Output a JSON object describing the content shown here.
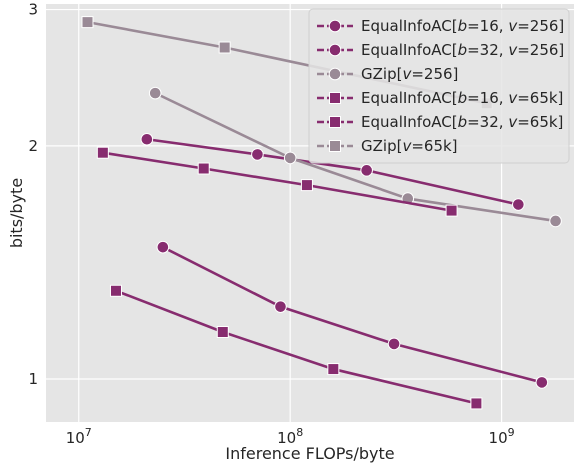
{
  "chart_data": {
    "type": "line",
    "xlabel": "Inference FLOPs/byte",
    "ylabel": "bits/byte",
    "x_scale": "log",
    "y_scale": "log",
    "xlim": [
      7000000,
      2200000000
    ],
    "ylim": [
      0.88,
      3.05
    ],
    "grid": true,
    "legend_position": "top-right",
    "background_color": "#e5e5e5",
    "x_ticks": [
      {
        "value": 10000000,
        "base": "10",
        "exp": "7"
      },
      {
        "value": 100000000,
        "base": "10",
        "exp": "8"
      },
      {
        "value": 1000000000,
        "base": "10",
        "exp": "9"
      }
    ],
    "y_ticks": [
      {
        "value": 1,
        "label": "1"
      },
      {
        "value": 2,
        "label": "2"
      },
      {
        "value": 3,
        "label": "3"
      }
    ],
    "series": [
      {
        "name": "EqualInfoAC[b=16, v=256]",
        "label_parts": [
          "EqualInfoAC[",
          "b",
          "=16, ",
          "v",
          "=256]"
        ],
        "color": "#872c6f",
        "marker": "circle",
        "points": [
          [
            25000000,
            1.48
          ],
          [
            90000000,
            1.24
          ],
          [
            310000000,
            1.11
          ],
          [
            1550000000,
            0.99
          ]
        ]
      },
      {
        "name": "EqualInfoAC[b=32, v=256]",
        "label_parts": [
          "EqualInfoAC[",
          "b",
          "=32, ",
          "v",
          "=256]"
        ],
        "color": "#872c6f",
        "marker": "circle",
        "points": [
          [
            21000000,
            2.04
          ],
          [
            70000000,
            1.95
          ],
          [
            230000000,
            1.86
          ],
          [
            1200000000,
            1.68
          ]
        ]
      },
      {
        "name": "GZip[v=256]",
        "label_parts": [
          "GZip[",
          "v",
          "=256]"
        ],
        "color": "#9a8a96",
        "marker": "circle",
        "points": [
          [
            23000000,
            2.34
          ],
          [
            100000000,
            1.93
          ],
          [
            360000000,
            1.71
          ],
          [
            1800000000,
            1.6
          ]
        ]
      },
      {
        "name": "EqualInfoAC[b=16, v=65k]",
        "label_parts": [
          "EqualInfoAC[",
          "b",
          "=16, ",
          "v",
          "=65k]"
        ],
        "color": "#872c6f",
        "marker": "square",
        "points": [
          [
            15000000,
            1.3
          ],
          [
            48000000,
            1.15
          ],
          [
            160000000,
            1.03
          ],
          [
            760000000,
            0.93
          ]
        ]
      },
      {
        "name": "EqualInfoAC[b=32, v=65k]",
        "label_parts": [
          "EqualInfoAC[",
          "b",
          "=32, ",
          "v",
          "=65k]"
        ],
        "color": "#872c6f",
        "marker": "square",
        "points": [
          [
            13000000,
            1.96
          ],
          [
            39000000,
            1.87
          ],
          [
            120000000,
            1.78
          ],
          [
            580000000,
            1.65
          ]
        ]
      },
      {
        "name": "GZip[v=65k]",
        "label_parts": [
          "GZip[",
          "v",
          "=65k]"
        ],
        "color": "#9a8a96",
        "marker": "square",
        "points": [
          [
            11000000,
            2.89
          ],
          [
            49000000,
            2.68
          ],
          [
            850000000,
            2.27
          ]
        ]
      }
    ]
  }
}
